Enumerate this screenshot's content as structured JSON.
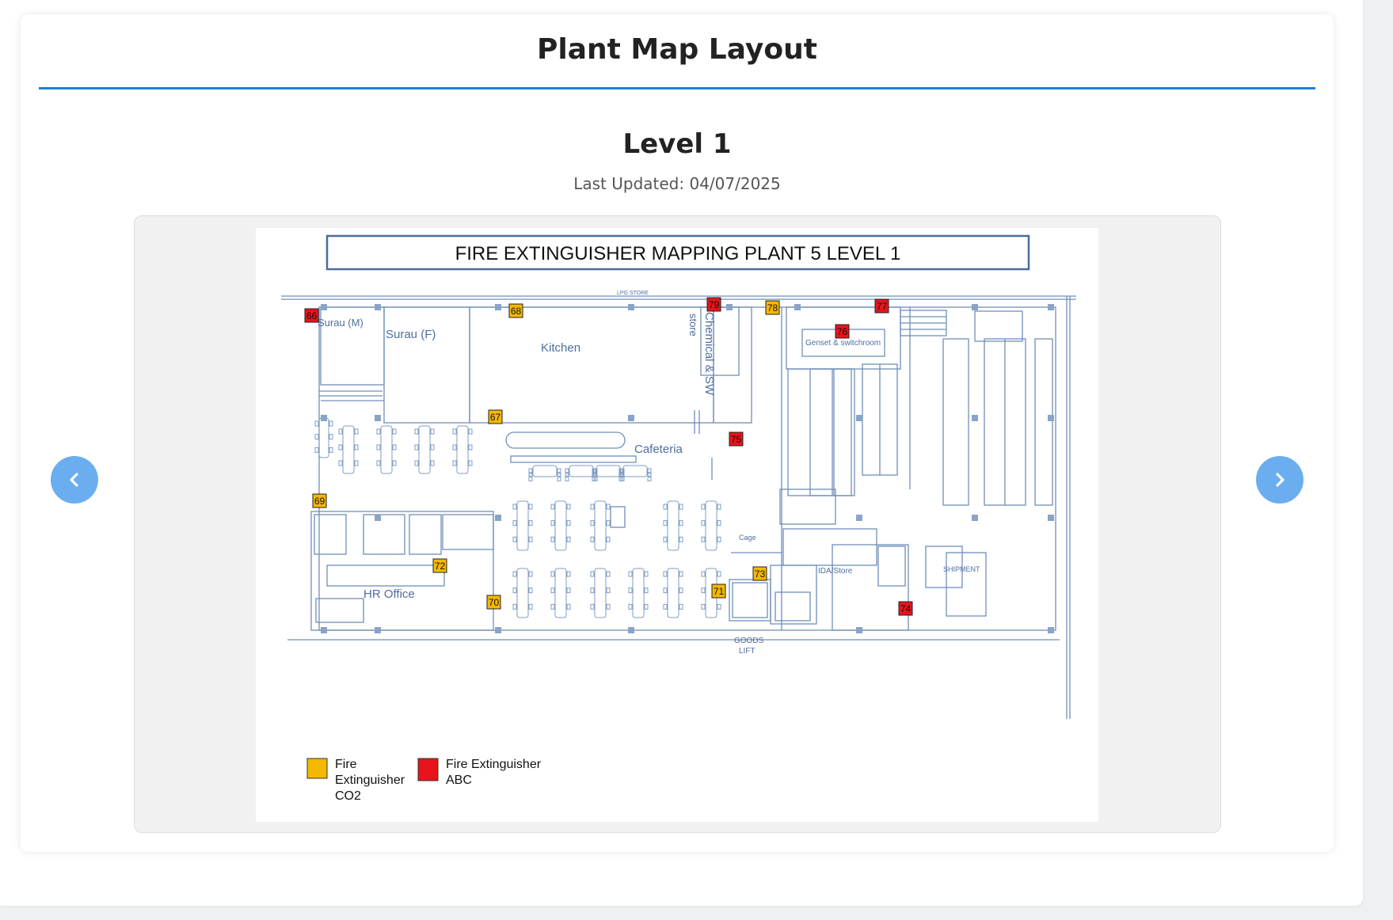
{
  "page": {
    "title": "Plant Map Layout",
    "level_title": "Level 1",
    "last_updated": "Last Updated: 04/07/2025"
  },
  "navigation": {
    "prev_icon": "chevron-left-icon",
    "next_icon": "chevron-right-icon"
  },
  "colors": {
    "accent": "#1e7fd6",
    "nav_button": "#6aaef0",
    "co2": "#f5b800",
    "abc": "#e8141b",
    "plan_line": "#6f8fb8"
  },
  "floor_plan": {
    "heading": "FIRE EXTINGUISHER MAPPING PLANT 5 LEVEL 1",
    "rooms": {
      "surau_m": "Surau (M)",
      "surau_f": "Surau (F)",
      "kitchen": "Kitchen",
      "store": "store",
      "chemical": "Chemical & SW",
      "genset": "Genset & switchroom",
      "cafeteria": "Cafeteria",
      "hr_office": "HR Office",
      "cage": "Cage",
      "ida_store": "IDA/Store",
      "shipment": "SHIPMENT",
      "goods": "GOODS",
      "lift": "LIFT",
      "lpg_store": "LPG STORE"
    },
    "markers": [
      {
        "id": "66",
        "type": "abc"
      },
      {
        "id": "67",
        "type": "co2"
      },
      {
        "id": "68",
        "type": "co2"
      },
      {
        "id": "69",
        "type": "co2"
      },
      {
        "id": "70",
        "type": "co2"
      },
      {
        "id": "71",
        "type": "co2"
      },
      {
        "id": "72",
        "type": "co2"
      },
      {
        "id": "73",
        "type": "co2"
      },
      {
        "id": "74",
        "type": "abc"
      },
      {
        "id": "75",
        "type": "abc"
      },
      {
        "id": "76",
        "type": "abc"
      },
      {
        "id": "77",
        "type": "abc"
      },
      {
        "id": "78",
        "type": "co2"
      },
      {
        "id": "79",
        "type": "abc"
      }
    ],
    "legend": {
      "co2_line1": "Fire",
      "co2_line2": "Extinguisher",
      "co2_line3": "CO2",
      "abc_line1": "Fire Extinguisher",
      "abc_line2": "ABC"
    }
  }
}
